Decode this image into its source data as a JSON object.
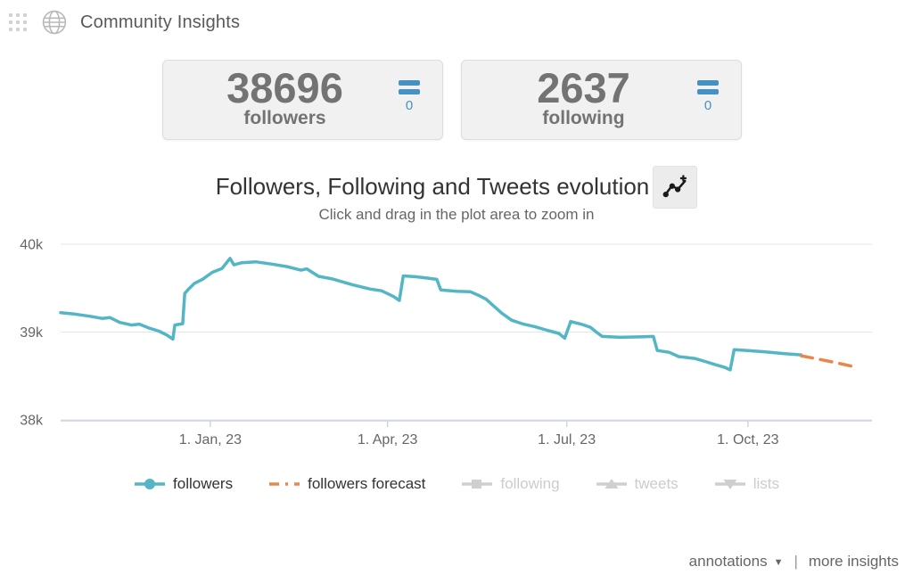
{
  "header": {
    "title": "Community Insights"
  },
  "stats": {
    "followers": {
      "value": "38696",
      "label": "followers",
      "badge": "0"
    },
    "following": {
      "value": "2637",
      "label": "following",
      "badge": "0"
    }
  },
  "chart_data": {
    "type": "line",
    "title": "Followers, Following and Tweets evolution",
    "subtitle": "Click and drag in the plot area to zoom in",
    "xlabel": "",
    "ylabel": "",
    "ylim": [
      37900,
      40100
    ],
    "x_range": [
      "2022-10-17",
      "2023-12-03"
    ],
    "grid": "horizontal",
    "grid_color": "#e6e6e6",
    "axis_color": "#ccd3dd",
    "tick_label_color": "#666666",
    "legend_position": "bottom",
    "ytick_values": [
      38000,
      39000,
      40000
    ],
    "ytick_labels": [
      "38k",
      "39k",
      "40k"
    ],
    "xtick_dates": [
      "2023-01-01",
      "2023-04-01",
      "2023-07-01",
      "2023-10-01"
    ],
    "xtick_labels": [
      "1. Jan, 23",
      "1. Apr, 23",
      "1. Jul, 23",
      "1. Oct, 23"
    ],
    "series": [
      {
        "name": "followers",
        "color": "#54b6c4",
        "style": "solid",
        "points": [
          [
            "2022-10-17",
            39220
          ],
          [
            "2022-10-24",
            39205
          ],
          [
            "2022-11-01",
            39180
          ],
          [
            "2022-11-07",
            39155
          ],
          [
            "2022-11-11",
            39165
          ],
          [
            "2022-11-16",
            39110
          ],
          [
            "2022-11-22",
            39080
          ],
          [
            "2022-11-26",
            39090
          ],
          [
            "2022-12-01",
            39045
          ],
          [
            "2022-12-06",
            39010
          ],
          [
            "2022-12-10",
            38965
          ],
          [
            "2022-12-13",
            38920
          ],
          [
            "2022-12-14",
            39080
          ],
          [
            "2022-12-18",
            39095
          ],
          [
            "2022-12-19",
            39440
          ],
          [
            "2022-12-21",
            39490
          ],
          [
            "2022-12-24",
            39555
          ],
          [
            "2022-12-28",
            39600
          ],
          [
            "2023-01-02",
            39680
          ],
          [
            "2023-01-07",
            39725
          ],
          [
            "2023-01-11",
            39840
          ],
          [
            "2023-01-13",
            39765
          ],
          [
            "2023-01-17",
            39790
          ],
          [
            "2023-01-24",
            39800
          ],
          [
            "2023-02-01",
            39775
          ],
          [
            "2023-02-09",
            39745
          ],
          [
            "2023-02-16",
            39705
          ],
          [
            "2023-02-19",
            39720
          ],
          [
            "2023-02-25",
            39635
          ],
          [
            "2023-03-04",
            39605
          ],
          [
            "2023-03-14",
            39540
          ],
          [
            "2023-03-23",
            39490
          ],
          [
            "2023-03-29",
            39470
          ],
          [
            "2023-04-04",
            39405
          ],
          [
            "2023-04-07",
            39360
          ],
          [
            "2023-04-09",
            39640
          ],
          [
            "2023-04-15",
            39630
          ],
          [
            "2023-04-21",
            39615
          ],
          [
            "2023-04-26",
            39600
          ],
          [
            "2023-04-28",
            39480
          ],
          [
            "2023-05-06",
            39465
          ],
          [
            "2023-05-13",
            39460
          ],
          [
            "2023-05-17",
            39420
          ],
          [
            "2023-05-21",
            39375
          ],
          [
            "2023-05-25",
            39295
          ],
          [
            "2023-05-29",
            39215
          ],
          [
            "2023-06-03",
            39135
          ],
          [
            "2023-06-09",
            39090
          ],
          [
            "2023-06-15",
            39060
          ],
          [
            "2023-06-21",
            39020
          ],
          [
            "2023-06-27",
            38985
          ],
          [
            "2023-06-30",
            38930
          ],
          [
            "2023-07-03",
            39120
          ],
          [
            "2023-07-09",
            39085
          ],
          [
            "2023-07-13",
            39055
          ],
          [
            "2023-07-16",
            39000
          ],
          [
            "2023-07-19",
            38950
          ],
          [
            "2023-07-28",
            38940
          ],
          [
            "2023-08-07",
            38945
          ],
          [
            "2023-08-14",
            38950
          ],
          [
            "2023-08-16",
            38790
          ],
          [
            "2023-08-22",
            38770
          ],
          [
            "2023-08-27",
            38720
          ],
          [
            "2023-09-04",
            38700
          ],
          [
            "2023-09-10",
            38660
          ],
          [
            "2023-09-15",
            38625
          ],
          [
            "2023-09-19",
            38600
          ],
          [
            "2023-09-22",
            38570
          ],
          [
            "2023-09-24",
            38800
          ],
          [
            "2023-10-01",
            38790
          ],
          [
            "2023-10-10",
            38775
          ],
          [
            "2023-10-19",
            38755
          ],
          [
            "2023-10-28",
            38740
          ]
        ]
      },
      {
        "name": "followers forecast",
        "color": "#e8874b",
        "style": "dashed",
        "dash": "13,9",
        "points": [
          [
            "2023-10-28",
            38730
          ],
          [
            "2023-11-04",
            38700
          ],
          [
            "2023-11-14",
            38655
          ],
          [
            "2023-11-25",
            38600
          ]
        ]
      },
      {
        "name": "following",
        "color": "#cfcfcf",
        "disabled": true
      },
      {
        "name": "tweets",
        "color": "#cfcfcf",
        "disabled": true
      },
      {
        "name": "lists",
        "color": "#cfcfcf",
        "disabled": true
      }
    ]
  },
  "footer": {
    "annotations": "annotations",
    "caret": "▼",
    "separator": "|",
    "more_insights": "more insights"
  },
  "colors": {
    "followers_line": "#54b6c4",
    "forecast_line": "#e8874b",
    "badge_blue": "#4691c3",
    "disabled_legend": "#cfcfcf"
  }
}
